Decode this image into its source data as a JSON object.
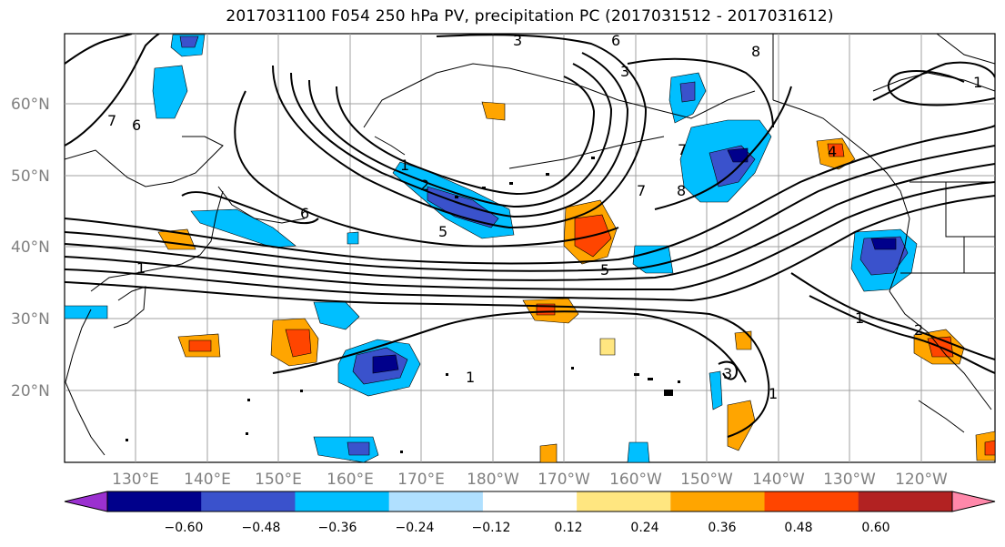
{
  "title": "2017031100 F054 250 hPa PV, precipitation PC (2017031512 - 2017031612)",
  "map": {
    "lat_ticks": [
      "60°N",
      "50°N",
      "40°N",
      "30°N",
      "20°N"
    ],
    "lon_ticks": [
      "130°E",
      "140°E",
      "150°E",
      "160°E",
      "170°E",
      "180°W",
      "170°W",
      "160°W",
      "150°W",
      "140°W",
      "130°W",
      "120°W"
    ],
    "pv_contour_labels": [
      "1",
      "1",
      "1",
      "1",
      "1",
      "2",
      "2",
      "3",
      "3",
      "3",
      "4",
      "5",
      "5",
      "6",
      "6",
      "6",
      "7",
      "7",
      "7",
      "8",
      "8",
      "1"
    ]
  },
  "colorbar": {
    "labels": [
      "−0.60",
      "−0.48",
      "−0.36",
      "−0.24",
      "−0.12",
      "0.12",
      "0.24",
      "0.36",
      "0.48",
      "0.60"
    ],
    "colors": [
      "#9b30d0",
      "#00008b",
      "#3a52cc",
      "#00bfff",
      "#b0e0ff",
      "#ffffff",
      "#ffe680",
      "#ffa500",
      "#ff4500",
      "#b22222",
      "#ff88aa"
    ]
  }
}
